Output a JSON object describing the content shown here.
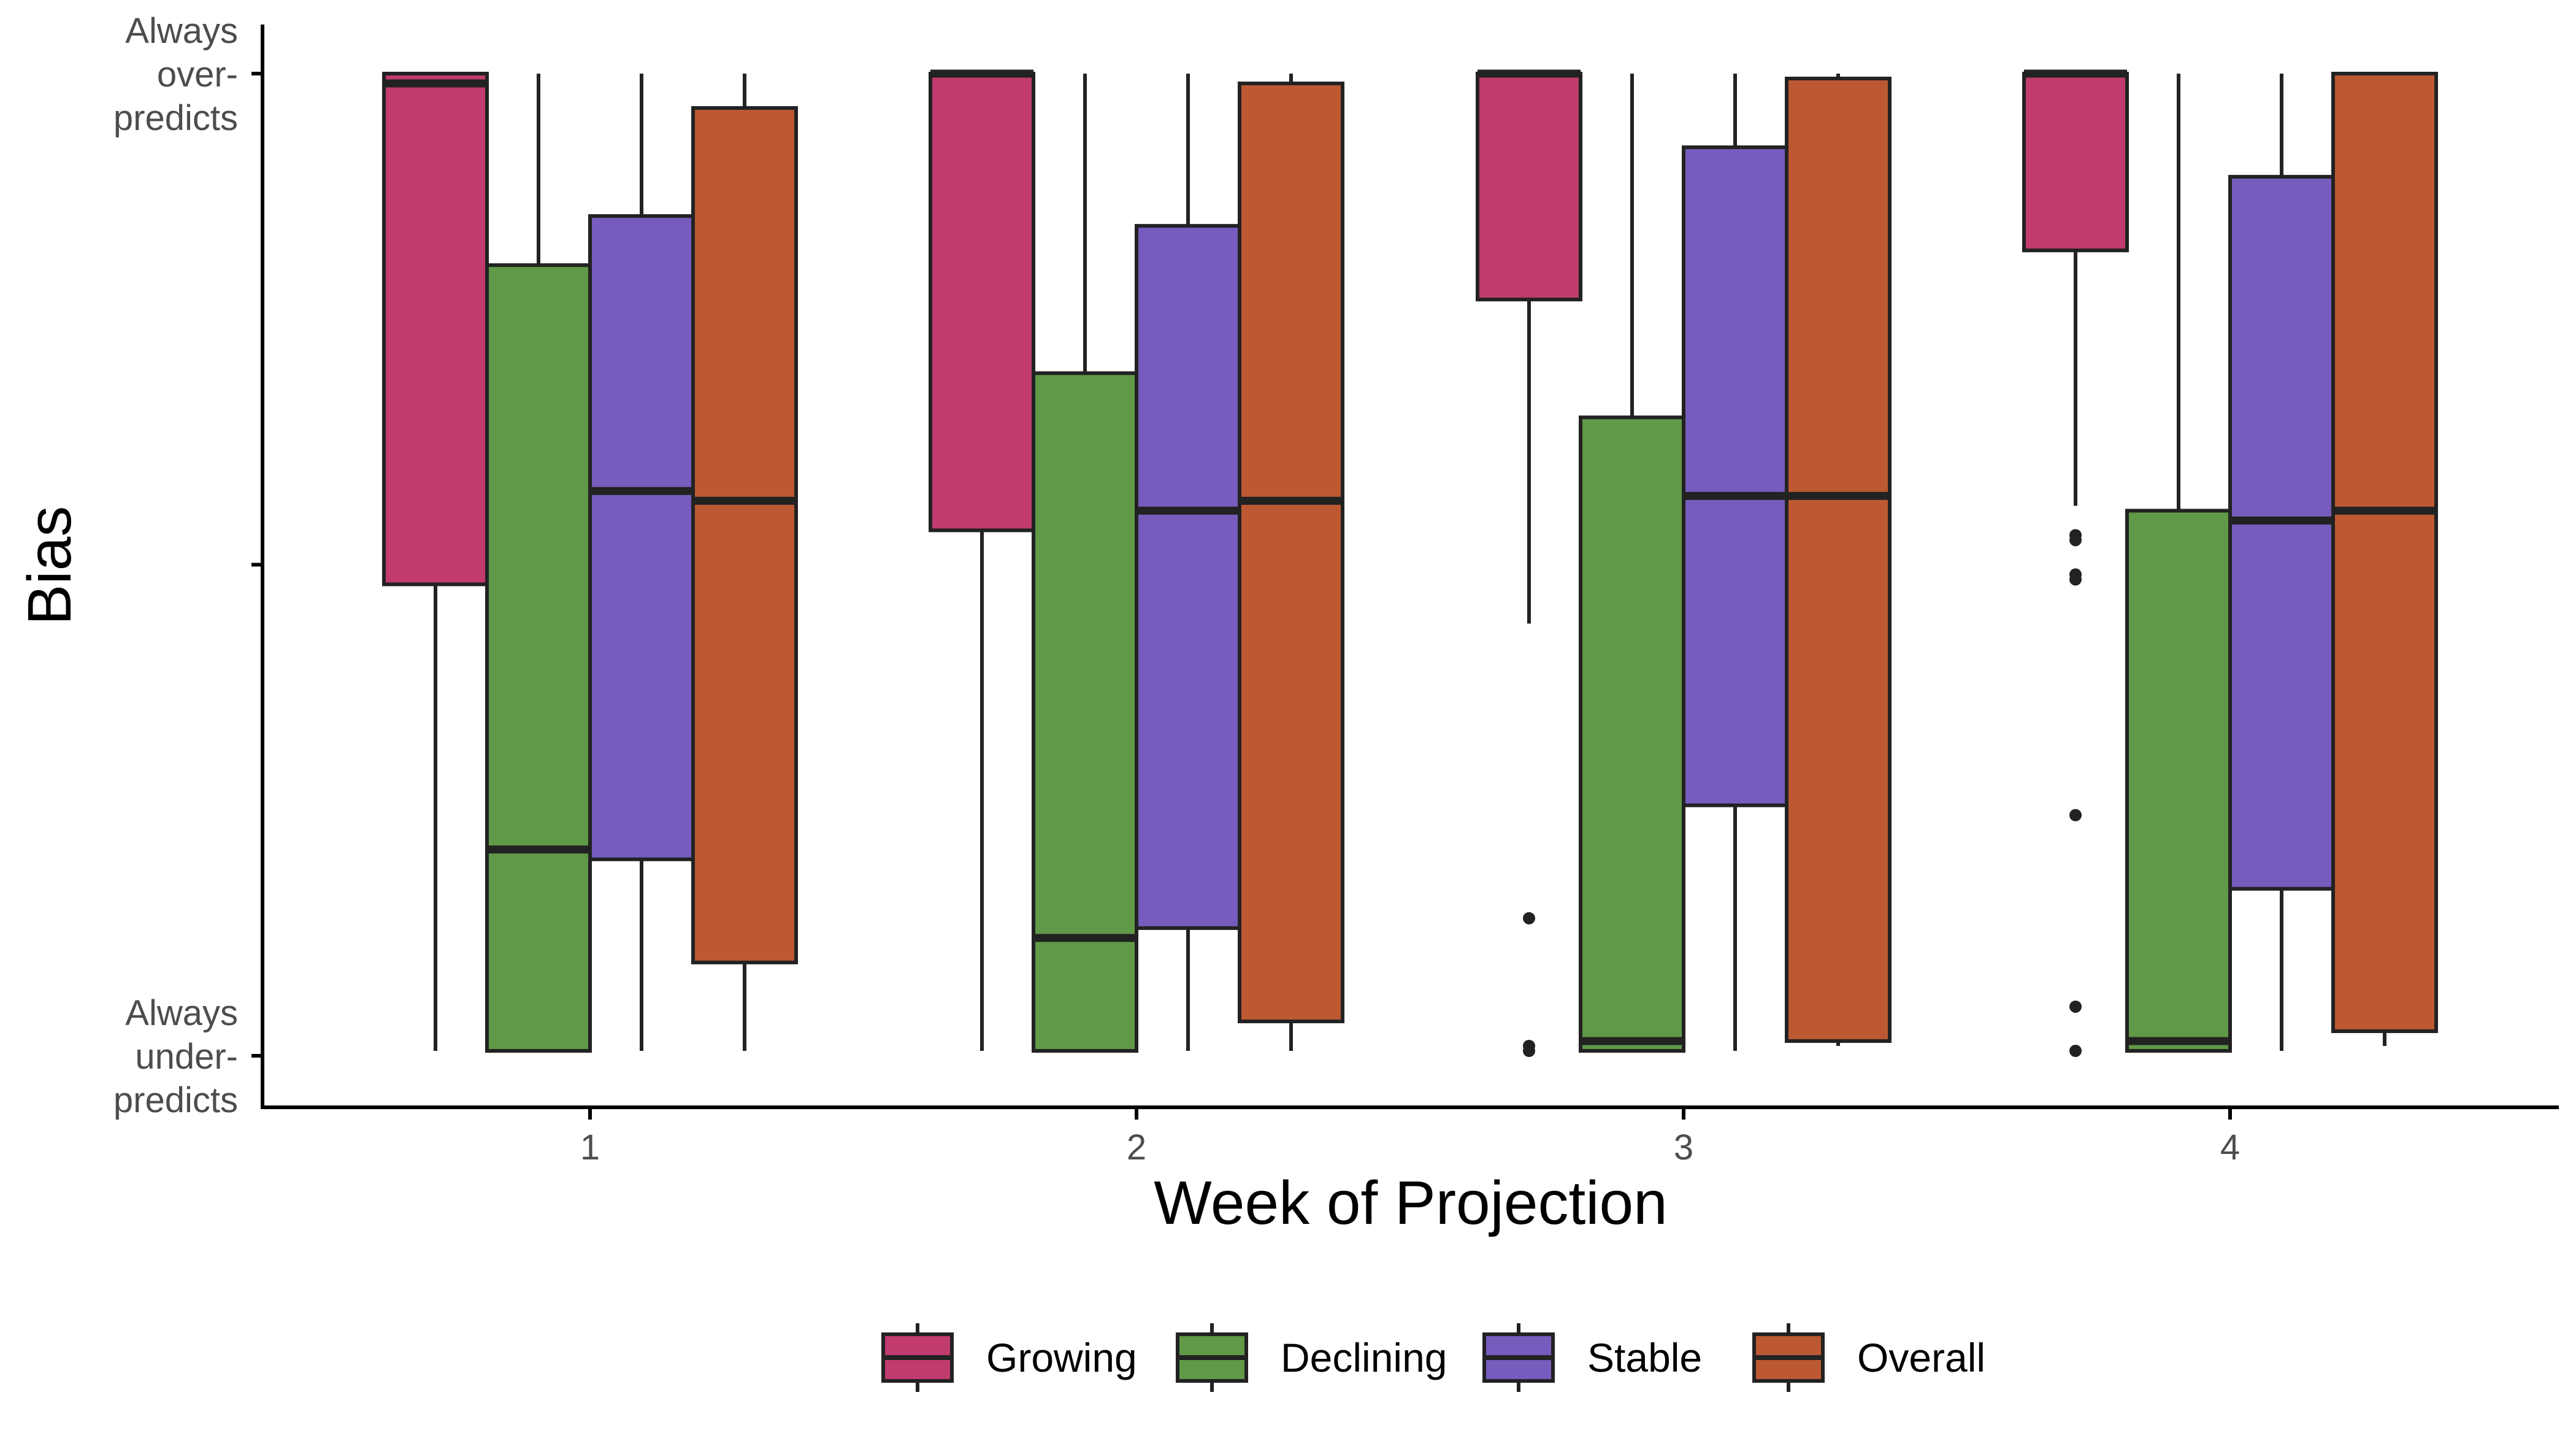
{
  "chart_data": {
    "type": "box",
    "x_label": "Week of Projection",
    "y_label": "Bias",
    "categories": [
      "1",
      "2",
      "3",
      "4"
    ],
    "y_range": [
      -1,
      1
    ],
    "y_ticks": [
      {
        "value": 1,
        "lines": [
          "Always",
          "over-",
          "predicts"
        ]
      },
      {
        "value": 0,
        "lines": []
      },
      {
        "value": -1,
        "lines": [
          "Always",
          "under-",
          "predicts"
        ]
      }
    ],
    "grid": false,
    "legend_position": "bottom",
    "series": [
      {
        "name": "Growing",
        "color": "#C13B6E",
        "boxes": [
          {
            "lower": -0.99,
            "q1": -0.04,
            "median": 0.98,
            "q3": 1.0,
            "upper": 1.0,
            "outliers": []
          },
          {
            "lower": -0.99,
            "q1": 0.07,
            "median": 1.0,
            "q3": 1.0,
            "upper": 1.0,
            "outliers": []
          },
          {
            "lower": -0.12,
            "q1": 0.54,
            "median": 1.0,
            "q3": 1.0,
            "upper": 1.0,
            "outliers": [
              -0.72,
              -0.98,
              -0.99
            ]
          },
          {
            "lower": 0.12,
            "q1": 0.64,
            "median": 1.0,
            "q3": 1.0,
            "upper": 1.0,
            "outliers": [
              0.06,
              0.05,
              -0.02,
              -0.03,
              -0.51,
              -0.9,
              -0.99
            ]
          }
        ]
      },
      {
        "name": "Declining",
        "color": "#609947",
        "boxes": [
          {
            "lower": -0.99,
            "q1": -0.99,
            "median": -0.58,
            "q3": 0.61,
            "upper": 1.0,
            "outliers": []
          },
          {
            "lower": -0.99,
            "q1": -0.99,
            "median": -0.76,
            "q3": 0.39,
            "upper": 1.0,
            "outliers": []
          },
          {
            "lower": -0.99,
            "q1": -0.99,
            "median": -0.97,
            "q3": 0.3,
            "upper": 1.0,
            "outliers": []
          },
          {
            "lower": -0.99,
            "q1": -0.99,
            "median": -0.97,
            "q3": 0.11,
            "upper": 1.0,
            "outliers": []
          }
        ]
      },
      {
        "name": "Stable",
        "color": "#755CBD",
        "boxes": [
          {
            "lower": -0.99,
            "q1": -0.6,
            "median": 0.15,
            "q3": 0.71,
            "upper": 1.0,
            "outliers": []
          },
          {
            "lower": -0.99,
            "q1": -0.74,
            "median": 0.11,
            "q3": 0.69,
            "upper": 1.0,
            "outliers": []
          },
          {
            "lower": -0.99,
            "q1": -0.49,
            "median": 0.14,
            "q3": 0.85,
            "upper": 1.0,
            "outliers": []
          },
          {
            "lower": -0.99,
            "q1": -0.66,
            "median": 0.09,
            "q3": 0.79,
            "upper": 1.0,
            "outliers": []
          }
        ]
      },
      {
        "name": "Overall",
        "color": "#BC5933",
        "boxes": [
          {
            "lower": -0.99,
            "q1": -0.81,
            "median": 0.13,
            "q3": 0.93,
            "upper": 1.0,
            "outliers": []
          },
          {
            "lower": -0.99,
            "q1": -0.93,
            "median": 0.13,
            "q3": 0.98,
            "upper": 1.0,
            "outliers": []
          },
          {
            "lower": -0.98,
            "q1": -0.97,
            "median": 0.14,
            "q3": 0.99,
            "upper": 1.0,
            "outliers": []
          },
          {
            "lower": -0.98,
            "q1": -0.95,
            "median": 0.11,
            "q3": 1.0,
            "upper": 1.0,
            "outliers": []
          }
        ]
      }
    ]
  }
}
